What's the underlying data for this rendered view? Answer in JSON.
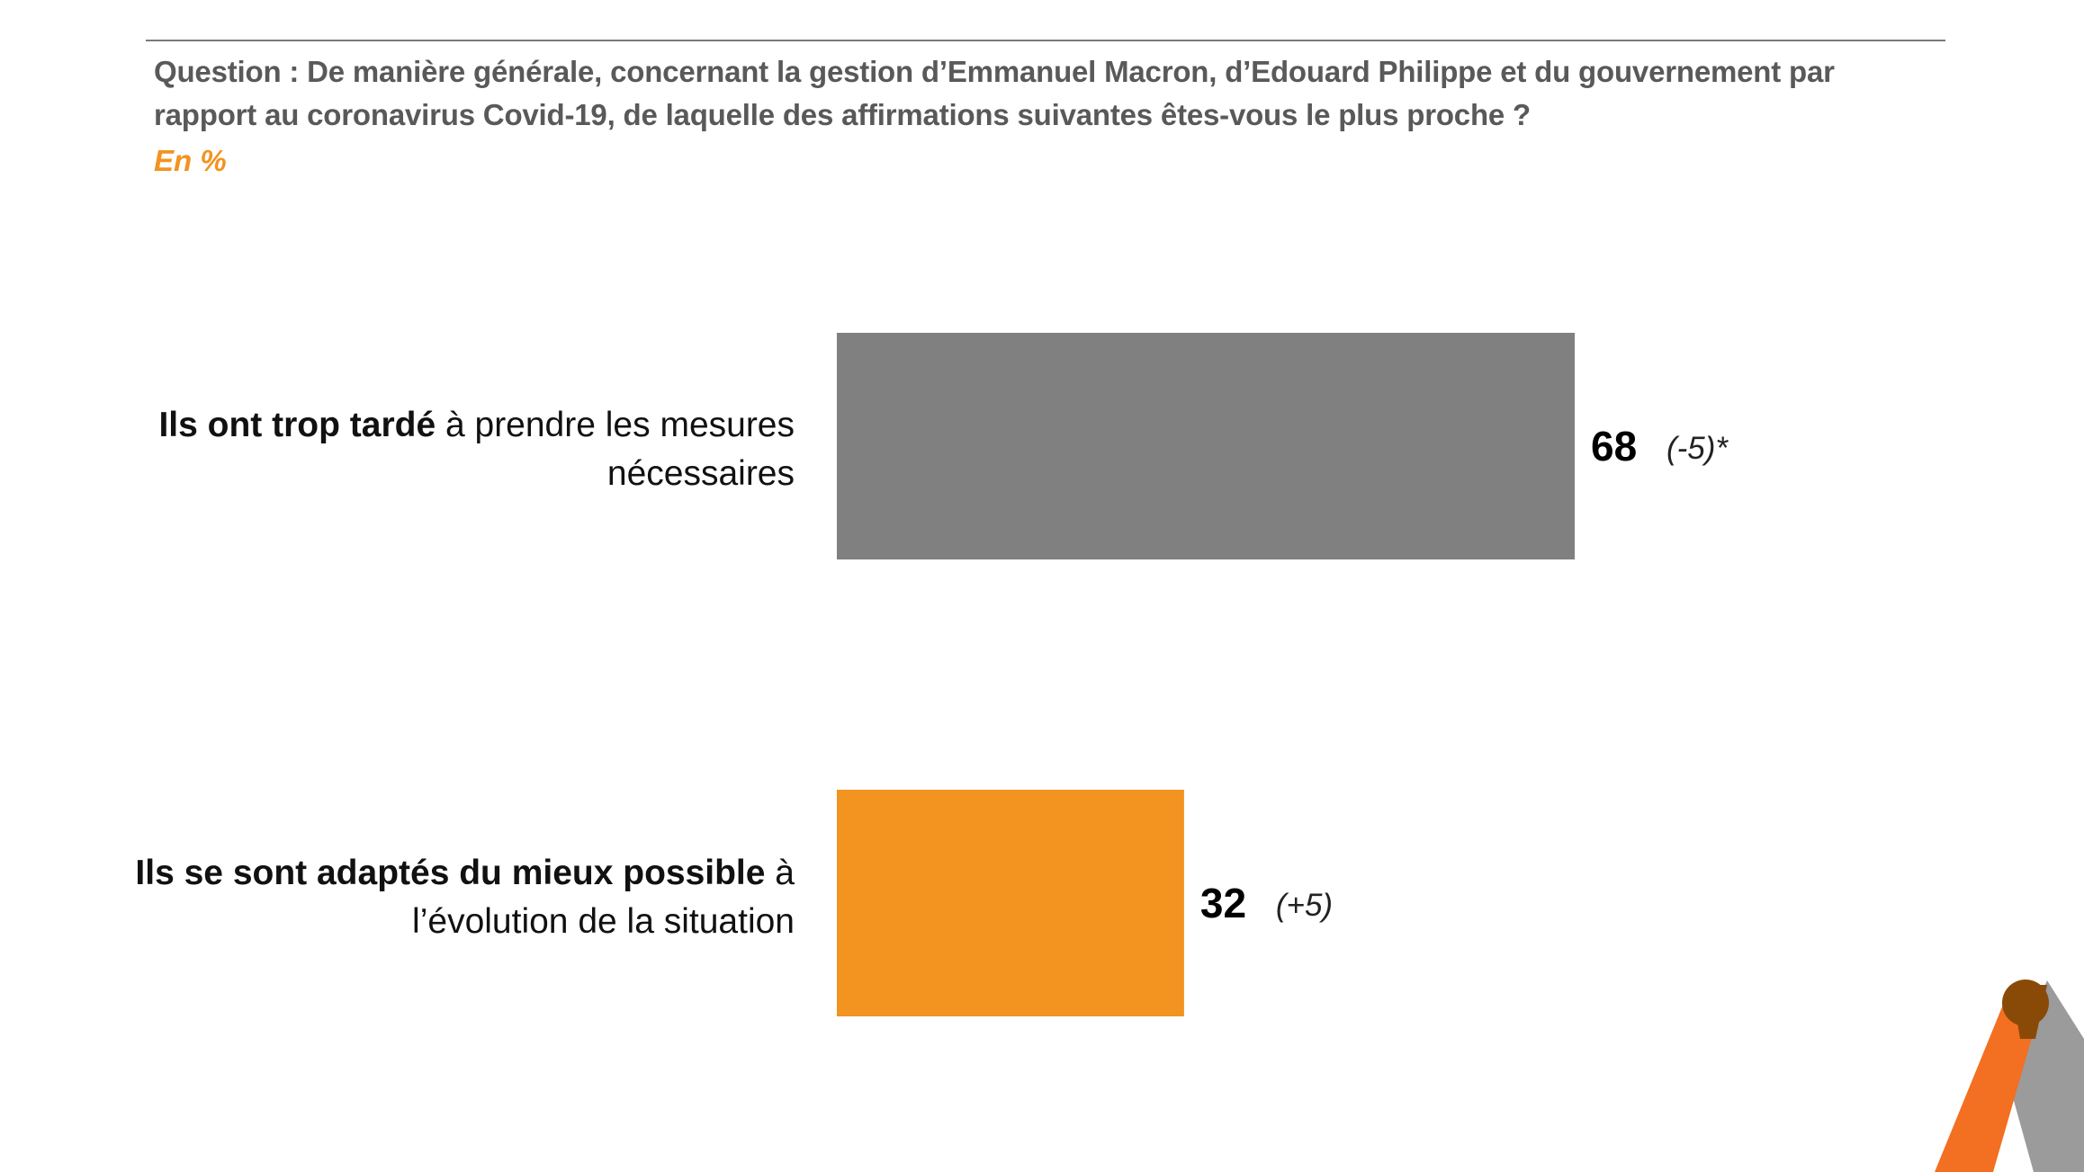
{
  "header": {
    "question": "Question : De manière générale, concernant la gestion d’Emmanuel Macron, d’Edouard Philippe et du gouvernement par rapport au coronavirus Covid-19, de laquelle des affirmations suivantes êtes-vous le plus proche ?",
    "unit": "En %"
  },
  "chart_data": {
    "type": "bar",
    "orientation": "horizontal",
    "unit": "%",
    "categories": [
      "Ils ont trop tardé à prendre les mesures nécessaires",
      "Ils se sont adaptés du mieux possible à l’évolution de la situation"
    ],
    "labels": [
      {
        "bold": "Ils ont trop tardé",
        "normal": " à prendre les mesures nécessaires"
      },
      {
        "bold": "Ils se sont adaptés du mieux possible",
        "normal": " à l’évolution de la situation"
      }
    ],
    "values": [
      68,
      32
    ],
    "value_labels": [
      "68",
      "32"
    ],
    "changes": [
      "(-5)*",
      "(+5)"
    ],
    "colors": [
      "#808080",
      "#f39320"
    ],
    "xlim": [
      0,
      100
    ],
    "grid": false,
    "legend": "none"
  },
  "colors": {
    "accent": "#f39320",
    "bar_gray": "#808080",
    "text_gray": "#595959",
    "logo_orange": "#f36f21",
    "logo_gray": "#9b9b9b",
    "logo_brown": "#8a4a07"
  }
}
